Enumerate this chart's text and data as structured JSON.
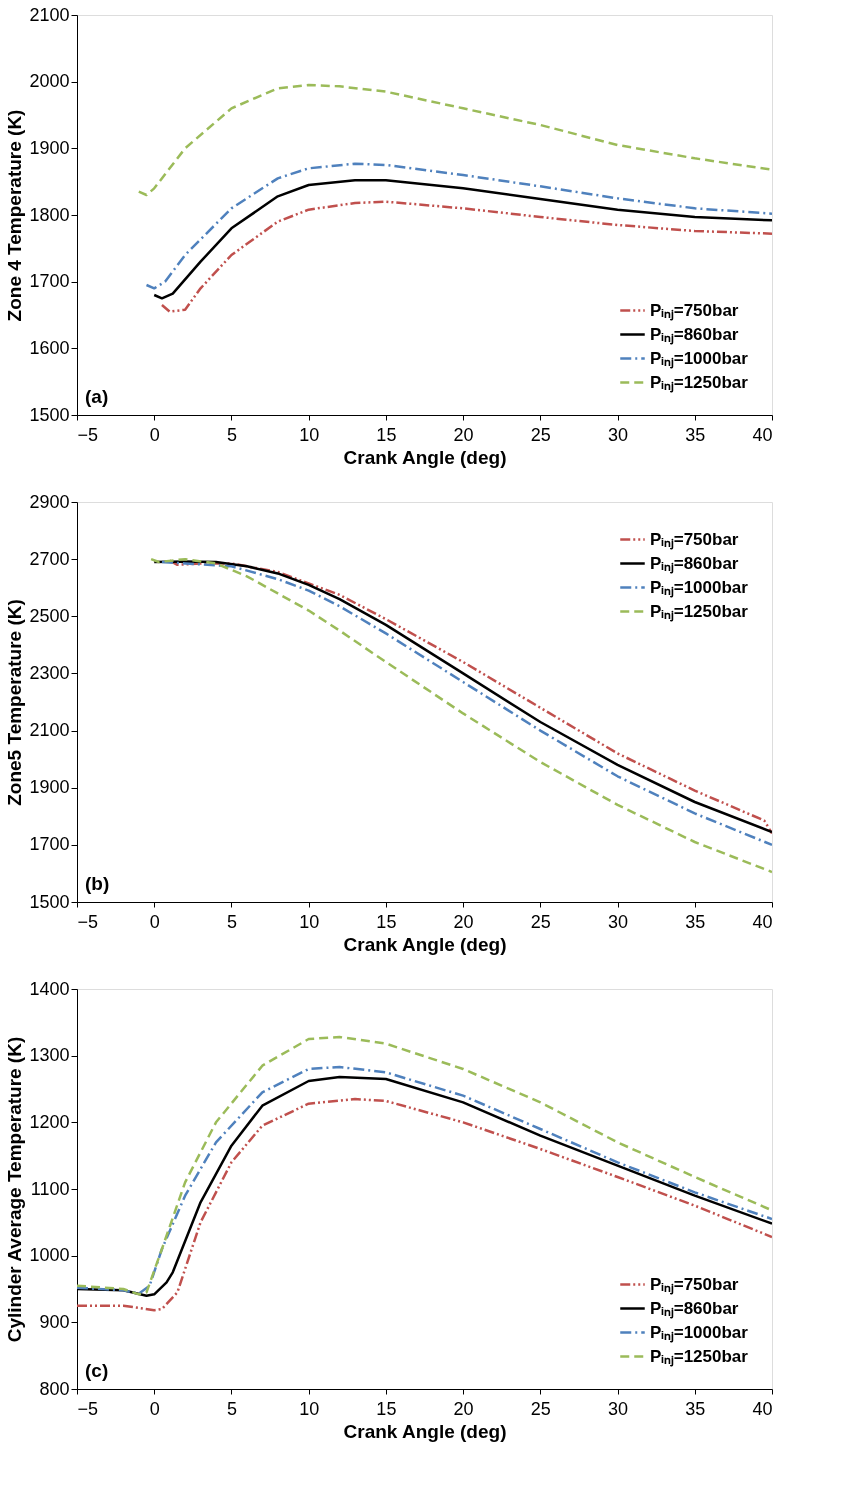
{
  "chart_data": [
    {
      "type": "line",
      "xlabel": "Crank Angle (deg)",
      "ylabel": "Zone 4 Temperature (K)",
      "annotations": [
        "(a)"
      ],
      "xlim": [
        -5,
        40
      ],
      "xticks": [
        -5,
        0,
        5,
        10,
        15,
        20,
        25,
        30,
        35,
        40
      ],
      "ylim": [
        1500,
        2100
      ],
      "yticks": [
        1500,
        1600,
        1700,
        1800,
        1900,
        2000,
        2100
      ],
      "grid": false,
      "legend": "bottom right",
      "series": [
        {
          "name": "Pᵢₙⱼ=750bar",
          "color": "#c0504d",
          "line_style": "dashdotdot",
          "x": [
            0.5,
            1,
            2,
            3,
            5,
            8,
            10,
            13,
            15,
            20,
            25,
            30,
            35,
            40
          ],
          "values": [
            1665,
            1655,
            1658,
            1690,
            1740,
            1790,
            1808,
            1818,
            1820,
            1810,
            1797,
            1785,
            1776,
            1772
          ]
        },
        {
          "name": "Pᵢₙⱼ=860bar",
          "color": "#000000",
          "line_style": "solid",
          "x": [
            0,
            0.5,
            1.2,
            3,
            5,
            8,
            10,
            13,
            15,
            20,
            25,
            30,
            35,
            40
          ],
          "values": [
            1680,
            1675,
            1682,
            1730,
            1780,
            1828,
            1845,
            1852,
            1852,
            1840,
            1824,
            1808,
            1797,
            1792
          ]
        },
        {
          "name": "Pᵢₙⱼ=1000bar",
          "color": "#4f81bd",
          "line_style": "dashdot",
          "x": [
            -0.5,
            0,
            0.7,
            2,
            5,
            8,
            10,
            13,
            15,
            20,
            25,
            30,
            35,
            40
          ],
          "values": [
            1695,
            1690,
            1700,
            1740,
            1810,
            1855,
            1870,
            1877,
            1875,
            1860,
            1843,
            1825,
            1810,
            1802
          ]
        },
        {
          "name": "Pᵢₙⱼ=1250bar",
          "color": "#9bbb59",
          "line_style": "dashed",
          "x": [
            -1,
            -0.5,
            0,
            2,
            5,
            8,
            10,
            12,
            15,
            20,
            25,
            30,
            35,
            40
          ],
          "values": [
            1835,
            1830,
            1840,
            1900,
            1960,
            1990,
            1995,
            1993,
            1985,
            1960,
            1935,
            1905,
            1885,
            1868
          ]
        }
      ]
    },
    {
      "type": "line",
      "xlabel": "Crank Angle (deg)",
      "ylabel": "Zone5 Temperature (K)",
      "annotations": [
        "(b)"
      ],
      "xlim": [
        -5,
        40
      ],
      "xticks": [
        -5,
        0,
        5,
        10,
        15,
        20,
        25,
        30,
        35,
        40
      ],
      "ylim": [
        1500,
        2900
      ],
      "yticks": [
        1500,
        1700,
        1900,
        2100,
        2300,
        2500,
        2700,
        2900
      ],
      "grid": false,
      "legend": "top right",
      "series": [
        {
          "name": "Pᵢₙⱼ=750bar",
          "color": "#c0504d",
          "line_style": "dashdotdot",
          "x": [
            1,
            1.5,
            3,
            5,
            8,
            10,
            12,
            15,
            20,
            25,
            30,
            35,
            39.5,
            40
          ],
          "values": [
            2695,
            2680,
            2685,
            2685,
            2655,
            2615,
            2575,
            2490,
            2340,
            2180,
            2020,
            1890,
            1785,
            1740
          ]
        },
        {
          "name": "Pᵢₙⱼ=860bar",
          "color": "#000000",
          "line_style": "solid",
          "x": [
            0,
            2,
            4,
            6,
            8,
            10,
            12,
            15,
            20,
            25,
            30,
            35,
            40
          ],
          "values": [
            2690,
            2692,
            2690,
            2675,
            2650,
            2610,
            2560,
            2470,
            2300,
            2130,
            1980,
            1850,
            1745
          ]
        },
        {
          "name": "Pᵢₙⱼ=1000bar",
          "color": "#4f81bd",
          "line_style": "dashdot",
          "x": [
            0.5,
            2,
            5,
            8,
            10,
            12,
            15,
            20,
            25,
            30,
            35,
            40
          ],
          "values": [
            2690,
            2685,
            2675,
            2630,
            2590,
            2535,
            2440,
            2270,
            2100,
            1940,
            1810,
            1700
          ]
        },
        {
          "name": "Pᵢₙⱼ=1250bar",
          "color": "#9bbb59",
          "line_style": "dashed",
          "x": [
            -0.2,
            0.3,
            2,
            4,
            6,
            8,
            10,
            12,
            15,
            20,
            25,
            30,
            35,
            40
          ],
          "values": [
            2700,
            2690,
            2700,
            2685,
            2640,
            2580,
            2520,
            2450,
            2340,
            2160,
            1990,
            1840,
            1710,
            1605
          ]
        }
      ]
    },
    {
      "type": "line",
      "xlabel": "Crank Angle (deg)",
      "ylabel": "Cylinder Average Temperature (K)",
      "annotations": [
        "(c)"
      ],
      "xlim": [
        -5,
        40
      ],
      "xticks": [
        -5,
        0,
        5,
        10,
        15,
        20,
        25,
        30,
        35,
        40
      ],
      "ylim": [
        800,
        1400
      ],
      "yticks": [
        800,
        900,
        1000,
        1100,
        1200,
        1300,
        1400
      ],
      "grid": false,
      "legend": "bottom right",
      "series": [
        {
          "name": "Pᵢₙⱼ=750bar",
          "color": "#c0504d",
          "line_style": "dashdotdot",
          "x": [
            -5,
            -2,
            0,
            0.5,
            1.5,
            3,
            5,
            7,
            10,
            13,
            15,
            20,
            25,
            30,
            35,
            40
          ],
          "values": [
            925,
            925,
            918,
            920,
            945,
            1050,
            1140,
            1195,
            1228,
            1235,
            1232,
            1200,
            1160,
            1118,
            1075,
            1028
          ]
        },
        {
          "name": "Pᵢₙⱼ=860bar",
          "color": "#000000",
          "line_style": "solid",
          "x": [
            -5,
            -2,
            -0.5,
            0,
            0.8,
            1.2,
            3,
            5,
            7,
            10,
            12,
            15,
            20,
            25,
            30,
            35,
            40
          ],
          "values": [
            950,
            948,
            940,
            942,
            960,
            975,
            1080,
            1165,
            1225,
            1262,
            1268,
            1265,
            1230,
            1180,
            1135,
            1090,
            1048
          ]
        },
        {
          "name": "Pᵢₙⱼ=1000bar",
          "color": "#4f81bd",
          "line_style": "dashdot",
          "x": [
            -5,
            -2,
            -1,
            -0.3,
            0.5,
            2,
            4,
            7,
            10,
            12,
            15,
            20,
            25,
            30,
            35,
            40
          ],
          "values": [
            952,
            948,
            943,
            955,
            1010,
            1090,
            1170,
            1245,
            1280,
            1283,
            1275,
            1240,
            1190,
            1140,
            1095,
            1055
          ]
        },
        {
          "name": "Pᵢₙⱼ=1250bar",
          "color": "#9bbb59",
          "line_style": "dashed",
          "x": [
            -5,
            -2,
            -1,
            -0.5,
            0.5,
            2,
            4,
            7,
            10,
            12,
            15,
            20,
            25,
            30,
            35,
            40
          ],
          "values": [
            955,
            950,
            942,
            945,
            1010,
            1110,
            1200,
            1285,
            1325,
            1328,
            1318,
            1280,
            1230,
            1170,
            1118,
            1068
          ]
        }
      ]
    }
  ]
}
